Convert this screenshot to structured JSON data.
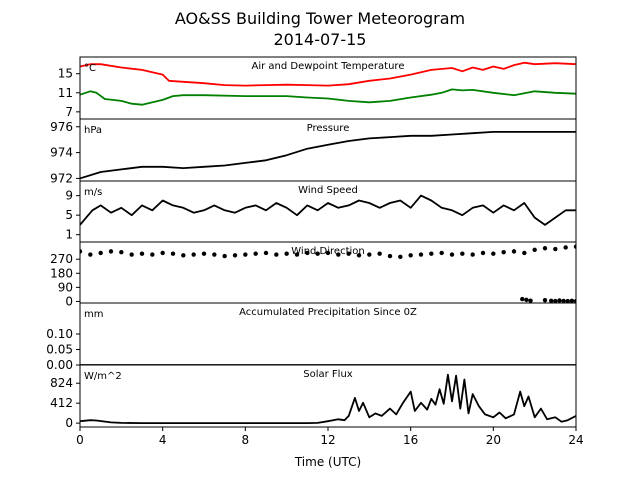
{
  "title": "AO&SS Building Tower Meteorogram",
  "subtitle": "2014-07-15",
  "xlabel": "Time (UTC)",
  "x_ticks": [
    "0",
    "4",
    "8",
    "12",
    "16",
    "20",
    "24"
  ],
  "chart_data": [
    {
      "type": "line",
      "title": "Air and Dewpoint Temperature",
      "unit": "°C",
      "xlim": [
        0,
        24
      ],
      "ylim": [
        5.5,
        18.5
      ],
      "y_ticks": [
        15,
        11,
        7
      ],
      "y_tick_labels": [
        "15",
        "11",
        "7"
      ],
      "series": [
        {
          "color": "#ff0000",
          "x": [
            0,
            0.5,
            1,
            2,
            3,
            3.5,
            4,
            4.3,
            5,
            6,
            7,
            8,
            9,
            10,
            11,
            12,
            13,
            14,
            15,
            16,
            16.5,
            17,
            18,
            18.5,
            19,
            19.5,
            20,
            20.5,
            21,
            21.5,
            22,
            23,
            24
          ],
          "y": [
            16.5,
            17.0,
            17.0,
            16.3,
            15.8,
            15.3,
            14.8,
            13.5,
            13.3,
            13.0,
            12.6,
            12.5,
            12.6,
            12.7,
            12.6,
            12.5,
            12.8,
            13.5,
            14.0,
            14.8,
            15.3,
            15.8,
            16.2,
            15.5,
            16.3,
            15.8,
            16.5,
            16.0,
            16.8,
            17.3,
            17.0,
            17.2,
            17.0
          ]
        },
        {
          "color": "#008000",
          "x": [
            0,
            0.5,
            0.8,
            1.2,
            2,
            2.5,
            3,
            4,
            4.5,
            5,
            6,
            8,
            10,
            11,
            12,
            13,
            14,
            15,
            16,
            17,
            17.5,
            18,
            18.5,
            19,
            20,
            21,
            22,
            23,
            24
          ],
          "y": [
            10.6,
            11.3,
            11.0,
            9.7,
            9.3,
            8.7,
            8.5,
            9.5,
            10.3,
            10.5,
            10.5,
            10.3,
            10.3,
            10.0,
            9.8,
            9.3,
            9.0,
            9.3,
            10.0,
            10.6,
            11.0,
            11.7,
            11.5,
            11.6,
            11.0,
            10.5,
            11.3,
            11.0,
            10.8
          ]
        }
      ]
    },
    {
      "type": "line",
      "title": "Pressure",
      "unit": "hPa",
      "xlim": [
        0,
        24
      ],
      "ylim": [
        971.8,
        976.6
      ],
      "y_ticks": [
        976,
        974,
        972
      ],
      "y_tick_labels": [
        "976",
        "974",
        "972"
      ],
      "series": [
        {
          "color": "#000000",
          "x": [
            0,
            1,
            2,
            3,
            4,
            5,
            6,
            7,
            8,
            9,
            10,
            11,
            12,
            13,
            14,
            15,
            16,
            17,
            18,
            19,
            20,
            21,
            22,
            23,
            24
          ],
          "y": [
            972.0,
            972.5,
            972.7,
            972.9,
            972.9,
            972.8,
            972.9,
            973.0,
            973.2,
            973.4,
            973.8,
            974.3,
            974.6,
            974.9,
            975.1,
            975.2,
            975.3,
            975.3,
            975.4,
            975.5,
            975.6,
            975.6,
            975.6,
            975.6,
            975.6
          ]
        }
      ]
    },
    {
      "type": "line",
      "title": "Wind Speed",
      "unit": "m/s",
      "xlim": [
        0,
        24
      ],
      "ylim": [
        -0.5,
        12
      ],
      "y_ticks": [
        9,
        5,
        1
      ],
      "y_tick_labels": [
        "9",
        "5",
        "1"
      ],
      "series": [
        {
          "color": "#000000",
          "x": [
            0,
            0.3,
            0.6,
            1,
            1.5,
            2,
            2.5,
            3,
            3.5,
            4,
            4.5,
            5,
            5.5,
            6,
            6.5,
            7,
            7.5,
            8,
            8.5,
            9,
            9.5,
            10,
            10.5,
            11,
            11.5,
            12,
            12.5,
            13,
            13.5,
            14,
            14.5,
            15,
            15.5,
            16,
            16.5,
            17,
            17.5,
            18,
            18.5,
            19,
            19.5,
            20,
            20.5,
            21,
            21.5,
            22,
            22.5,
            23,
            23.5,
            24
          ],
          "y": [
            3.0,
            4.5,
            6.0,
            7.0,
            5.5,
            6.5,
            5.0,
            7.0,
            6.0,
            8.0,
            7.0,
            6.5,
            5.5,
            6.0,
            7.0,
            6.0,
            5.5,
            6.5,
            7.0,
            6.0,
            7.5,
            6.5,
            5.0,
            7.0,
            6.0,
            7.5,
            6.5,
            7.0,
            8.0,
            7.5,
            6.5,
            7.5,
            8.0,
            6.5,
            9.0,
            8.0,
            6.5,
            6.0,
            5.0,
            6.5,
            7.0,
            5.5,
            7.0,
            6.0,
            7.5,
            4.5,
            3.0,
            4.5,
            6.0,
            6.0
          ]
        }
      ]
    },
    {
      "type": "scatter",
      "title": "Wind Direction",
      "unit": "",
      "xlim": [
        0,
        24
      ],
      "ylim": [
        -10,
        380
      ],
      "y_ticks": [
        270,
        180,
        90,
        0
      ],
      "y_tick_labels": [
        "270",
        "180",
        "90",
        "0"
      ],
      "series": [
        {
          "color": "#000000",
          "x": [
            0,
            0.5,
            1,
            1.5,
            2,
            2.5,
            3,
            3.5,
            4,
            4.5,
            5,
            5.5,
            6,
            6.5,
            7,
            7.5,
            8,
            8.5,
            9,
            9.5,
            10,
            10.5,
            11,
            11.5,
            12,
            12.5,
            13,
            13.5,
            14,
            14.5,
            15,
            15.5,
            16,
            16.5,
            17,
            17.5,
            18,
            18.5,
            19,
            19.5,
            20,
            20.5,
            21,
            21.5,
            22,
            22.5,
            23,
            23.5,
            24
          ],
          "y": [
            320,
            300,
            310,
            320,
            315,
            300,
            305,
            300,
            310,
            305,
            295,
            300,
            305,
            300,
            290,
            295,
            300,
            305,
            310,
            300,
            305,
            300,
            310,
            305,
            310,
            300,
            305,
            295,
            300,
            305,
            290,
            285,
            295,
            300,
            305,
            310,
            300,
            305,
            300,
            310,
            305,
            315,
            320,
            310,
            330,
            340,
            335,
            345,
            350
          ]
        },
        {
          "color": "#000000",
          "x": [
            21.4,
            21.6,
            21.8,
            22.5,
            22.8,
            23,
            23.2,
            23.4,
            23.6,
            23.8,
            24
          ],
          "y": [
            15,
            10,
            5,
            8,
            4,
            2,
            6,
            3,
            2,
            4,
            2
          ]
        }
      ]
    },
    {
      "type": "line",
      "title": "Accumulated Precipitation Since 0Z",
      "unit": "mm",
      "xlim": [
        0,
        24
      ],
      "ylim": [
        0,
        0.2
      ],
      "y_ticks": [
        0.1,
        0.05,
        0.0
      ],
      "y_tick_labels": [
        "0.10",
        "0.05",
        "0.00"
      ],
      "series": [
        {
          "color": "#000000",
          "x": [
            0,
            24
          ],
          "y": [
            0,
            0
          ]
        }
      ]
    },
    {
      "type": "line",
      "title": "Solar Flux",
      "unit": "W/m^2",
      "xlim": [
        0,
        24
      ],
      "ylim": [
        -80,
        1200
      ],
      "y_ticks": [
        824,
        412,
        0
      ],
      "y_tick_labels": [
        "824",
        "412",
        "0"
      ],
      "series": [
        {
          "color": "#000000",
          "x": [
            0,
            0.5,
            0.8,
            1.5,
            2,
            3,
            4,
            5,
            6,
            7,
            8,
            9,
            10,
            11,
            11.5,
            12,
            12.5,
            12.8,
            13,
            13.3,
            13.5,
            13.7,
            14,
            14.3,
            14.6,
            15,
            15.3,
            15.6,
            16,
            16.2,
            16.5,
            16.8,
            17,
            17.2,
            17.4,
            17.6,
            17.8,
            18,
            18.2,
            18.4,
            18.6,
            18.8,
            19,
            19.3,
            19.6,
            20,
            20.3,
            20.6,
            21,
            21.3,
            21.5,
            21.7,
            22,
            22.3,
            22.6,
            23,
            23.3,
            23.6,
            24
          ],
          "y": [
            40,
            60,
            55,
            15,
            5,
            0,
            0,
            0,
            0,
            0,
            0,
            0,
            0,
            0,
            5,
            40,
            80,
            60,
            150,
            520,
            250,
            420,
            120,
            200,
            150,
            300,
            180,
            400,
            650,
            250,
            420,
            280,
            500,
            380,
            700,
            400,
            1000,
            450,
            980,
            300,
            900,
            200,
            600,
            350,
            180,
            120,
            220,
            100,
            180,
            650,
            350,
            550,
            120,
            300,
            80,
            120,
            30,
            60,
            150
          ]
        }
      ]
    }
  ]
}
